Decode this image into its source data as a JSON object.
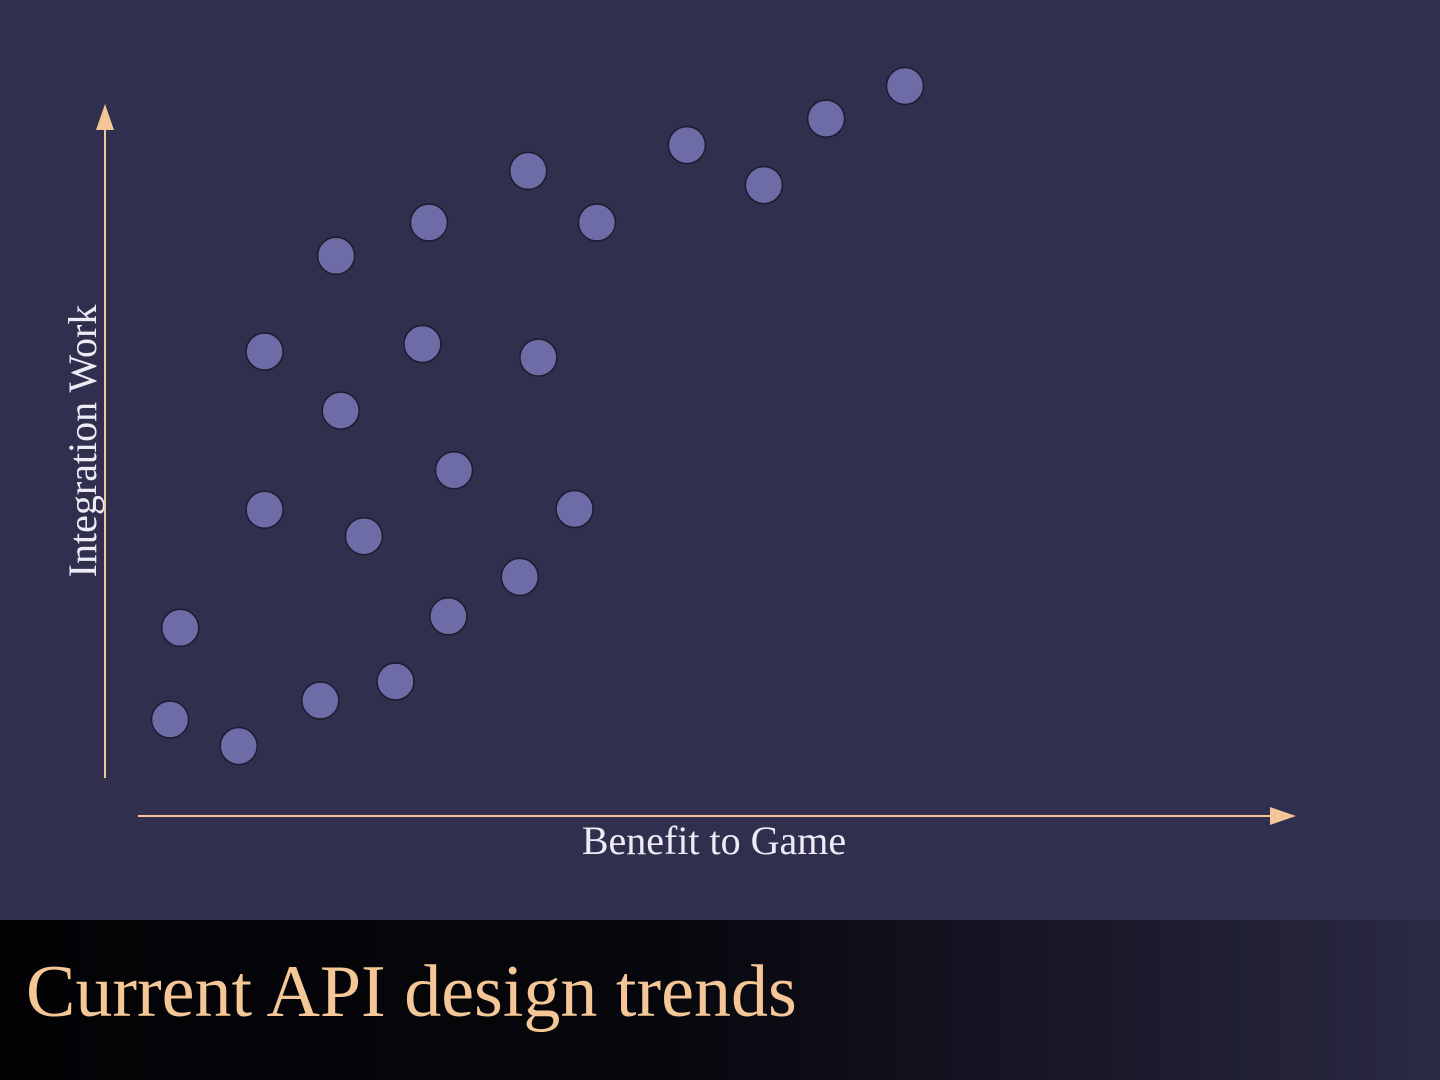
{
  "slide": {
    "title": "Current API design trends"
  },
  "colors": {
    "background": "#302f4d",
    "axis": "#f3c597",
    "point_fill": "#6e6ca6",
    "title_text": "#f6c796",
    "axis_label_text": "#ecebf6"
  },
  "chart_data": {
    "type": "scatter",
    "xlabel": "Benefit to Game",
    "ylabel": "Integration Work",
    "xlim": [
      0,
      100
    ],
    "ylim": [
      0,
      100
    ],
    "grid": false,
    "tick_labels": false,
    "series": [
      {
        "points": [
          {
            "x": 1.4,
            "y": 6.7
          },
          {
            "x": 2.5,
            "y": 20.2
          },
          {
            "x": 8.8,
            "y": 2.8
          },
          {
            "x": 11.6,
            "y": 37.6
          },
          {
            "x": 11.6,
            "y": 60.9
          },
          {
            "x": 17.6,
            "y": 9.5
          },
          {
            "x": 19.3,
            "y": 75.0
          },
          {
            "x": 19.8,
            "y": 52.2
          },
          {
            "x": 22.3,
            "y": 33.7
          },
          {
            "x": 25.7,
            "y": 12.3
          },
          {
            "x": 28.6,
            "y": 62.0
          },
          {
            "x": 29.3,
            "y": 79.9
          },
          {
            "x": 31.4,
            "y": 21.9
          },
          {
            "x": 32.0,
            "y": 43.4
          },
          {
            "x": 39.1,
            "y": 27.7
          },
          {
            "x": 40.0,
            "y": 87.5
          },
          {
            "x": 41.1,
            "y": 60.0
          },
          {
            "x": 45.0,
            "y": 37.7
          },
          {
            "x": 47.4,
            "y": 79.9
          },
          {
            "x": 57.1,
            "y": 91.3
          },
          {
            "x": 65.4,
            "y": 85.4
          },
          {
            "x": 72.1,
            "y": 95.2
          },
          {
            "x": 80.6,
            "y": 100.0
          }
        ]
      }
    ]
  }
}
